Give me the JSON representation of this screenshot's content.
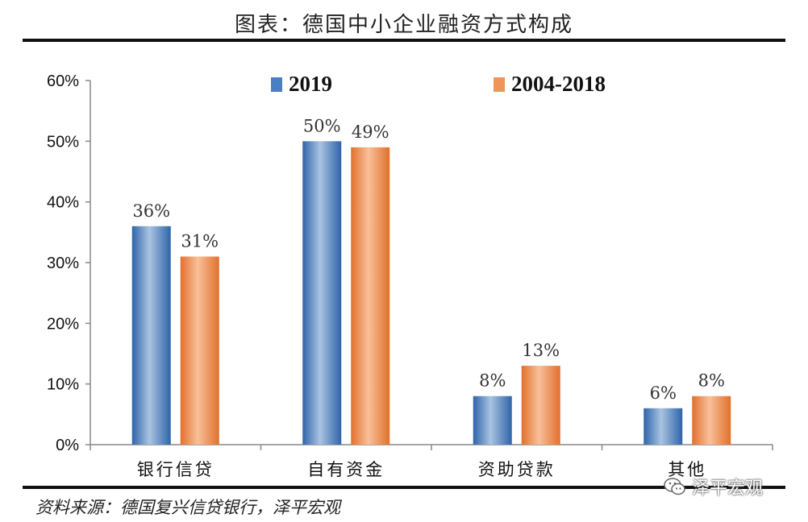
{
  "figure_title": "图表：德国中小企业融资方式构成",
  "source": "资料来源：德国复兴信贷银行，泽平宏观",
  "watermark": "泽平宏观",
  "colors": {
    "series_2019": "#4a7fc1",
    "series_2004_2018": "#f0955a"
  },
  "chart_data": {
    "type": "bar",
    "categories": [
      "银行信贷",
      "自有资金",
      "资助贷款",
      "其他"
    ],
    "series": [
      {
        "name": "2019",
        "values": [
          36,
          50,
          8,
          6
        ],
        "labels": [
          "36%",
          "50%",
          "8%",
          "6%"
        ]
      },
      {
        "name": "2004-2018",
        "values": [
          31,
          49,
          13,
          8
        ],
        "labels": [
          "31%",
          "49%",
          "13%",
          "8%"
        ]
      }
    ],
    "ylim": [
      0,
      60
    ],
    "yticks": [
      "0%",
      "10%",
      "20%",
      "30%",
      "40%",
      "50%",
      "60%"
    ],
    "xlabel": "",
    "ylabel": "",
    "grid": false,
    "legend": "top-center"
  }
}
